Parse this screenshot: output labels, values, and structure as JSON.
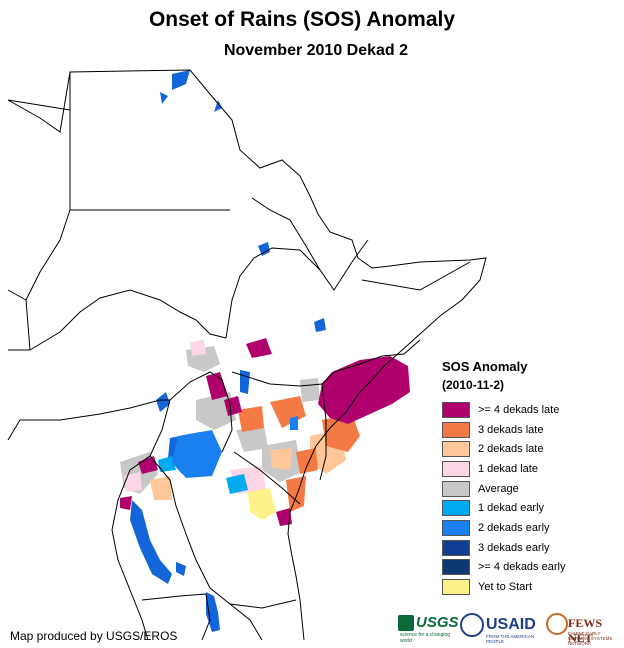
{
  "title": "Onset of Rains (SOS) Anomaly",
  "subtitle": "November 2010 Dekad 2",
  "legend": {
    "title": "SOS Anomaly",
    "date": "(2010-11-2)",
    "items": [
      {
        "label": ">= 4 dekads late",
        "color": "#b0006e"
      },
      {
        "label": "3 dekads late",
        "color": "#f47a45"
      },
      {
        "label": "2 dekads late",
        "color": "#fdc79a"
      },
      {
        "label": "1 dekad late",
        "color": "#fcd5e6"
      },
      {
        "label": "Average",
        "color": "#c8c8c8"
      },
      {
        "label": "1 dekad early",
        "color": "#00aaf0"
      },
      {
        "label": "2 dekads early",
        "color": "#1a80ef"
      },
      {
        "label": "3 dekads early",
        "color": "#103f91"
      },
      {
        "label": ">= 4 dekads early",
        "color": "#0d3873"
      },
      {
        "label": "Yet to Start",
        "color": "#fdf28a"
      }
    ]
  },
  "credit": "Map produced by USGS/EROS",
  "logos": {
    "usgs": "USGS",
    "usgs_tagline": "science for a changing world",
    "usaid": "USAID",
    "usaid_tagline": "FROM THE AMERICAN PEOPLE",
    "fews": "FEWS NET",
    "fews_tagline": "FAMINE EARLY WARNING SYSTEMS NETWORK"
  },
  "colors": {
    "water": "#1266d8",
    "border": "#000000"
  }
}
